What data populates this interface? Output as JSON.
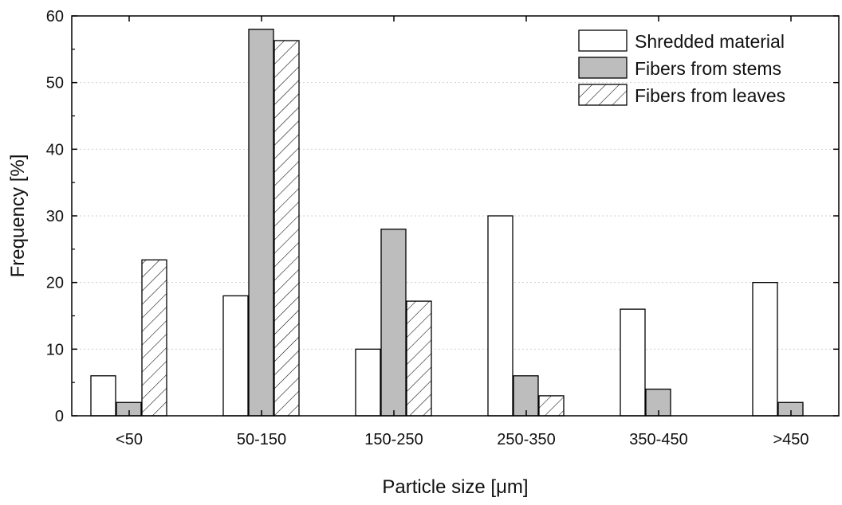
{
  "chart_data": {
    "type": "bar",
    "title": "",
    "xlabel": "Particle size [μm]",
    "ylabel": "Frequency [%]",
    "ylim": [
      0,
      60
    ],
    "yticks": [
      0,
      10,
      20,
      30,
      40,
      50,
      60
    ],
    "categories": [
      "<50",
      "50-150",
      "150-250",
      "250-350",
      "350-450",
      ">450"
    ],
    "grid": "horizontal dotted",
    "legend_position": "top-right",
    "series": [
      {
        "name": "Shredded material",
        "values": [
          6,
          18,
          10,
          30,
          16,
          20
        ],
        "fill": "#ffffff",
        "pattern": "none"
      },
      {
        "name": "Fibers from stems",
        "values": [
          2,
          58,
          28,
          6,
          4,
          2
        ],
        "fill": "#bdbdbd",
        "pattern": "none"
      },
      {
        "name": "Fibers from leaves",
        "values": [
          23.4,
          56.3,
          17.2,
          3,
          0,
          0
        ],
        "fill": "#ffffff",
        "pattern": "diagonal-hatch"
      }
    ]
  }
}
